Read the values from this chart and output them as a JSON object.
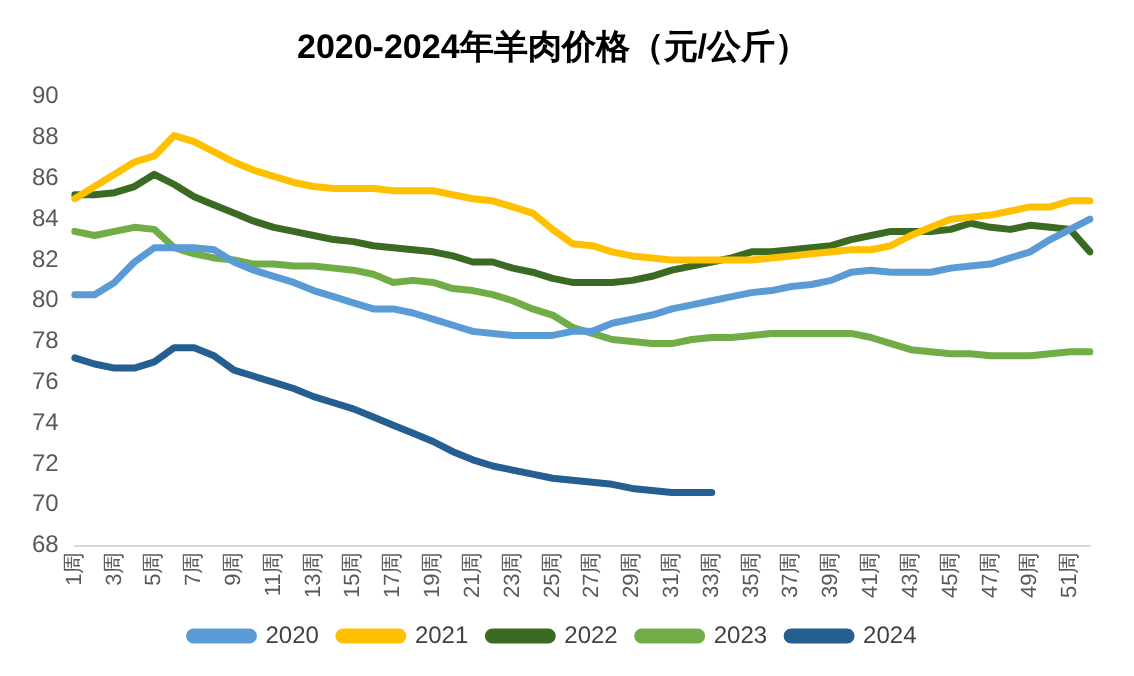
{
  "chart_data": {
    "type": "line",
    "title": "2020-2024年羊肉价格（元/公斤）",
    "categories": [
      "1周",
      null,
      "3周",
      null,
      "5周",
      null,
      "7周",
      null,
      "9周",
      null,
      "11周",
      null,
      "13周",
      null,
      "15周",
      null,
      "17周",
      null,
      "19周",
      null,
      "21周",
      null,
      "23周",
      null,
      "25周",
      null,
      "27周",
      null,
      "29周",
      null,
      "31周",
      null,
      "33周",
      null,
      "35周",
      null,
      "37周",
      null,
      "39周",
      null,
      "41周",
      null,
      "43周",
      null,
      "45周",
      null,
      "47周",
      null,
      "49周",
      null,
      "51周",
      null
    ],
    "ylim": [
      68,
      90
    ],
    "yticks": [
      68,
      70,
      72,
      74,
      76,
      78,
      80,
      82,
      84,
      86,
      88,
      90
    ],
    "grid": false,
    "legend": "bottom",
    "marker": "none",
    "series": [
      {
        "name": "2020",
        "color": "#5b9bd5",
        "values": [
          80.3,
          80.3,
          80.9,
          81.9,
          82.6,
          82.6,
          82.6,
          82.5,
          81.9,
          81.5,
          81.2,
          80.9,
          80.5,
          80.2,
          79.9,
          79.6,
          79.6,
          79.4,
          79.1,
          78.8,
          78.5,
          78.4,
          78.3,
          78.3,
          78.3,
          78.5,
          78.5,
          78.9,
          79.1,
          79.3,
          79.6,
          79.8,
          80.0,
          80.2,
          80.4,
          80.5,
          80.7,
          80.8,
          81.0,
          81.4,
          81.5,
          81.4,
          81.4,
          81.4,
          81.6,
          81.7,
          81.8,
          82.1,
          82.4,
          83.0,
          83.5,
          84.0
        ]
      },
      {
        "name": "2021",
        "color": "#ffc000",
        "values": [
          85.0,
          85.6,
          86.2,
          86.8,
          87.1,
          88.1,
          87.8,
          87.3,
          86.8,
          86.4,
          86.1,
          85.8,
          85.6,
          85.5,
          85.5,
          85.5,
          85.4,
          85.4,
          85.4,
          85.2,
          85.0,
          84.9,
          84.6,
          84.3,
          83.5,
          82.8,
          82.7,
          82.4,
          82.2,
          82.1,
          82.0,
          82.0,
          82.0,
          82.0,
          82.0,
          82.1,
          82.2,
          82.3,
          82.4,
          82.5,
          82.5,
          82.7,
          83.2,
          83.6,
          84.0,
          84.1,
          84.2,
          84.4,
          84.6,
          84.6,
          84.9,
          84.9
        ]
      },
      {
        "name": "2022",
        "color": "#3b6b22",
        "values": [
          85.2,
          85.2,
          85.3,
          85.6,
          86.2,
          85.7,
          85.1,
          84.7,
          84.3,
          83.9,
          83.6,
          83.4,
          83.2,
          83.0,
          82.9,
          82.7,
          82.6,
          82.5,
          82.4,
          82.2,
          81.9,
          81.9,
          81.6,
          81.4,
          81.1,
          80.9,
          80.9,
          80.9,
          81.0,
          81.2,
          81.5,
          81.7,
          81.9,
          82.1,
          82.4,
          82.4,
          82.5,
          82.6,
          82.7,
          83.0,
          83.2,
          83.4,
          83.4,
          83.4,
          83.5,
          83.8,
          83.6,
          83.5,
          83.7,
          83.6,
          83.5,
          82.4
        ]
      },
      {
        "name": "2023",
        "color": "#70ad47",
        "values": [
          83.4,
          83.2,
          83.4,
          83.6,
          83.5,
          82.6,
          82.3,
          82.1,
          82.0,
          81.8,
          81.8,
          81.7,
          81.7,
          81.6,
          81.5,
          81.3,
          80.9,
          81.0,
          80.9,
          80.6,
          80.5,
          80.3,
          80.0,
          79.6,
          79.3,
          78.7,
          78.4,
          78.1,
          78.0,
          77.9,
          77.9,
          78.1,
          78.2,
          78.2,
          78.3,
          78.4,
          78.4,
          78.4,
          78.4,
          78.4,
          78.2,
          77.9,
          77.6,
          77.5,
          77.4,
          77.4,
          77.3,
          77.3,
          77.3,
          77.4,
          77.5,
          77.5
        ]
      },
      {
        "name": "2024",
        "color": "#255e91",
        "values": [
          77.2,
          76.9,
          76.7,
          76.7,
          77.0,
          77.7,
          77.7,
          77.3,
          76.6,
          76.3,
          76.0,
          75.7,
          75.3,
          75.0,
          74.7,
          74.3,
          73.9,
          73.5,
          73.1,
          72.6,
          72.2,
          71.9,
          71.7,
          71.5,
          71.3,
          71.2,
          71.1,
          71.0,
          70.8,
          70.7,
          70.6,
          70.6,
          70.6,
          null,
          null,
          null,
          null,
          null,
          null,
          null,
          null,
          null,
          null,
          null,
          null,
          null,
          null,
          null,
          null,
          null,
          null,
          null
        ]
      }
    ]
  }
}
